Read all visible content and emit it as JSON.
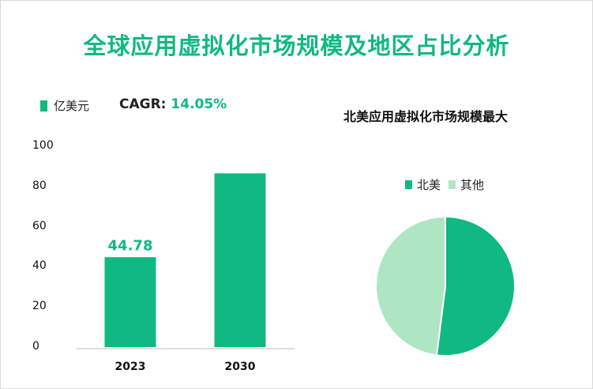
{
  "title": "全球应用虚拟化市场规模及地区占比分析",
  "colors": {
    "primary": "#10b981",
    "secondary": "#aee6c4",
    "text": "#111111"
  },
  "bar_chart": {
    "legend_label": "亿美元",
    "cagr_label": "CAGR:",
    "cagr_value": "14.05%"
  },
  "pie_chart": {
    "title": "北美应用虚拟化市场规模最大",
    "legend": [
      "北美",
      "其他"
    ]
  },
  "chart_data": [
    {
      "type": "bar",
      "title": "",
      "unit": "亿美元",
      "categories": [
        "2023",
        "2030"
      ],
      "values": [
        44.78,
        86.5
      ],
      "data_labels": [
        "44.78",
        ""
      ],
      "ylim": [
        0,
        100
      ],
      "yticks": [
        "0",
        "20",
        "40",
        "60",
        "80",
        "100"
      ],
      "xlabel": "",
      "ylabel": ""
    },
    {
      "type": "pie",
      "title": "北美应用虚拟化市场规模最大",
      "labels": [
        "北美",
        "其他"
      ],
      "values": [
        52,
        48
      ]
    }
  ]
}
